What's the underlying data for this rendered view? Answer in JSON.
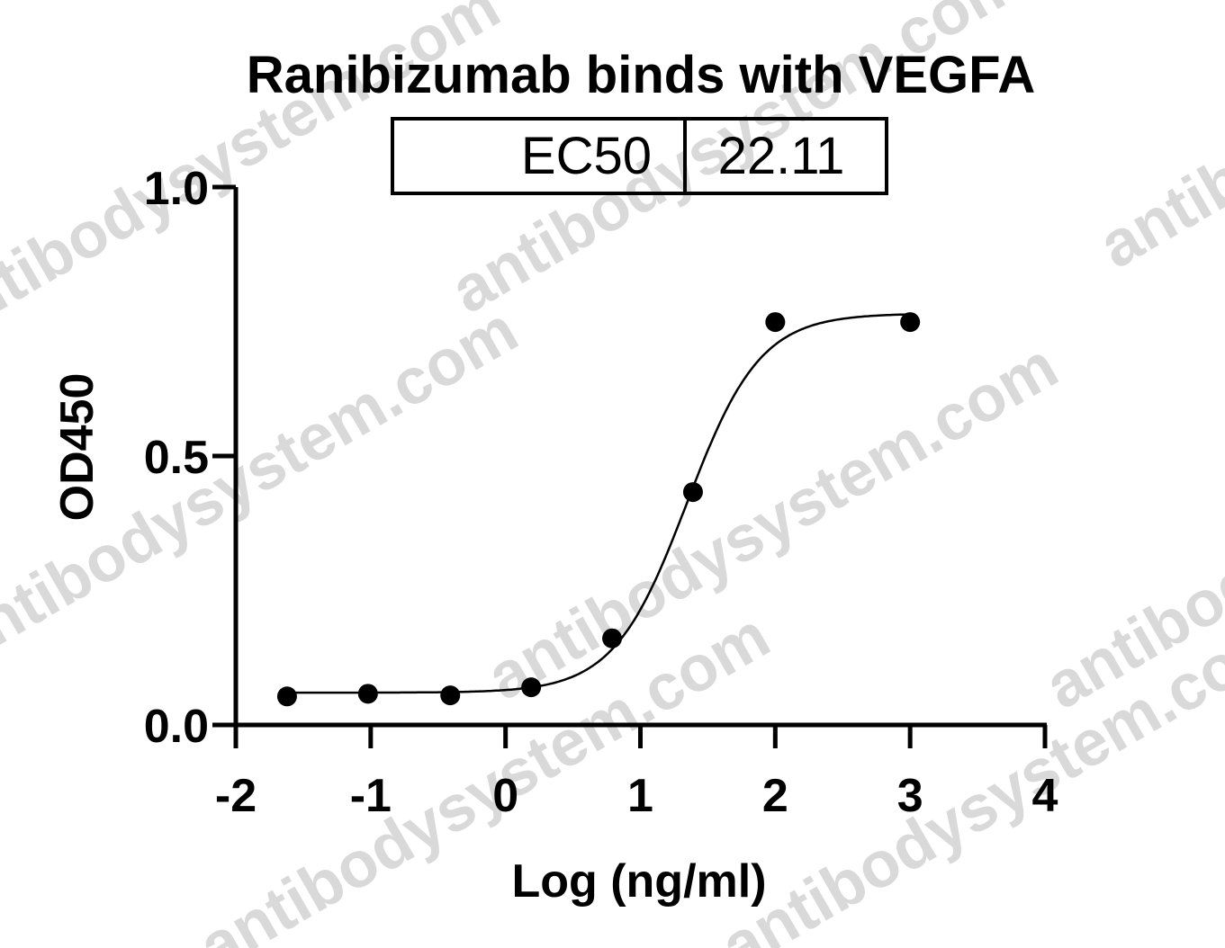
{
  "watermark": "antibodysystem.com",
  "chart_data": {
    "type": "scatter",
    "title": "Ranibizumab binds with VEGFA",
    "xlabel": "Log (ng/ml)",
    "ylabel": "OD450",
    "xlim": [
      -2,
      4
    ],
    "ylim": [
      0,
      1.0
    ],
    "x_ticks": [
      "-2",
      "-1",
      "0",
      "1",
      "2",
      "3",
      "4"
    ],
    "y_ticks": [
      "0.0",
      "0.5",
      "1.0"
    ],
    "legend_table": {
      "label": "EC50",
      "value": "22.11"
    },
    "series": [
      {
        "points": [
          {
            "x": -1.62,
            "y": 0.053
          },
          {
            "x": -1.02,
            "y": 0.058
          },
          {
            "x": -0.41,
            "y": 0.055
          },
          {
            "x": 0.19,
            "y": 0.07
          },
          {
            "x": 0.79,
            "y": 0.161
          },
          {
            "x": 1.39,
            "y": 0.433
          },
          {
            "x": 2.0,
            "y": 0.749
          },
          {
            "x": 3.0,
            "y": 0.749
          }
        ],
        "fit": {
          "model": "4PL",
          "bottom": 0.06,
          "top": 0.765,
          "log_ec50": 1.345,
          "hill": 1.6
        }
      }
    ],
    "grid": false
  }
}
